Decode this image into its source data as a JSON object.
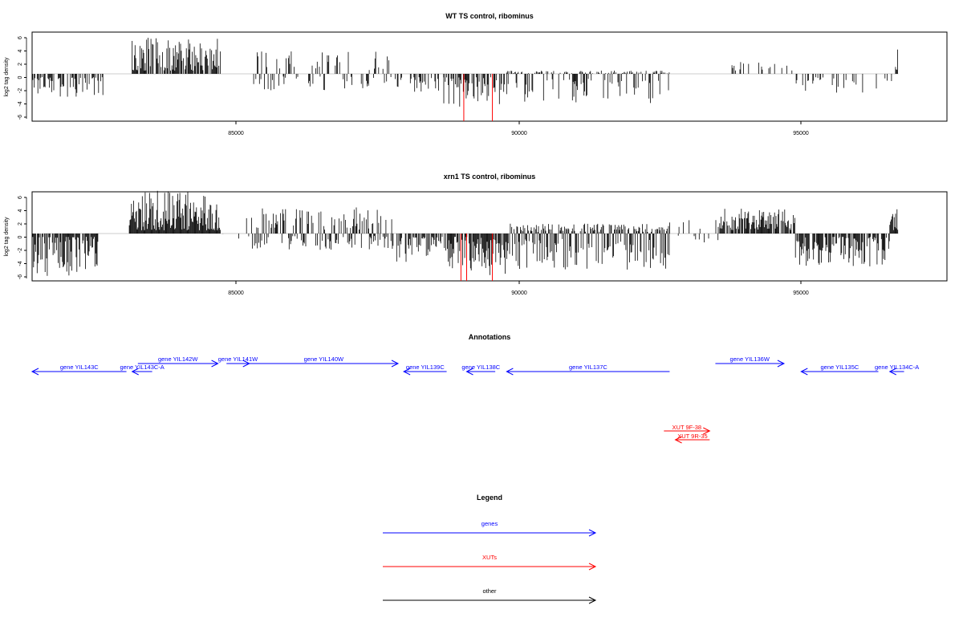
{
  "panels": [
    {
      "title": "WT TS control, ribominus",
      "ylabel": "log2 tag density",
      "yticks": [
        "6",
        "4",
        "2",
        "0",
        "-2",
        "-4",
        "-6"
      ],
      "xticks": [
        "85000",
        "90000",
        "95000"
      ]
    },
    {
      "title": "xrn1 TS control, ribominus",
      "ylabel": "log2 tag density",
      "yticks": [
        "6",
        "4",
        "2",
        "0",
        "-2",
        "-4",
        "-6"
      ],
      "xticks": [
        "85000",
        "90000",
        "95000"
      ]
    }
  ],
  "annotations": {
    "title": "Annotations",
    "genes": [
      {
        "label": "gene YIL143C",
        "start": 81650,
        "end": 83300,
        "strand": "-"
      },
      {
        "label": "gene YIL143C-A",
        "start": 83400,
        "end": 83750,
        "strand": "-"
      },
      {
        "label": "gene YIL142W",
        "start": 83500,
        "end": 84900,
        "strand": "+"
      },
      {
        "label": "gene YIL141W",
        "start": 85050,
        "end": 85450,
        "strand": "+"
      },
      {
        "label": "gene YIL140W",
        "start": 85450,
        "end": 88050,
        "strand": "+"
      },
      {
        "label": "gene YIL139C",
        "start": 88150,
        "end": 88900,
        "strand": "-"
      },
      {
        "label": "gene YIL138C",
        "start": 89250,
        "end": 89750,
        "strand": "-"
      },
      {
        "label": "gene YIL137C",
        "start": 89950,
        "end": 92800,
        "strand": "-"
      },
      {
        "label": "gene YIL136W",
        "start": 93600,
        "end": 94800,
        "strand": "+"
      },
      {
        "label": "gene YIL135C",
        "start": 95100,
        "end": 96450,
        "strand": "-"
      },
      {
        "label": "gene YIL134C-A",
        "start": 96650,
        "end": 96900,
        "strand": "-"
      }
    ],
    "xuts": [
      {
        "label": "XUT 9F-38",
        "start": 92700,
        "end": 93500,
        "strand": "+"
      },
      {
        "label": "XUT 9R-35",
        "start": 92900,
        "end": 93500,
        "strand": "-"
      }
    ]
  },
  "legend": {
    "title": "Legend",
    "items": [
      {
        "label": "genes",
        "color": "#0000ff"
      },
      {
        "label": "XUTs",
        "color": "#ff0000"
      },
      {
        "label": "other",
        "color": "#000000"
      }
    ]
  },
  "colors": {
    "gene": "#0000ff",
    "xut": "#ff0000",
    "signal": "#000000",
    "highlight": "#ff0000"
  },
  "chart_data": [
    {
      "type": "bar",
      "title": "WT TS control, ribominus",
      "ylabel": "log2 tag density",
      "xlabel": "",
      "xlim": [
        81650,
        97650
      ],
      "ylim": [
        -7.5,
        6.8
      ],
      "xticks": [
        85000,
        90000,
        95000
      ],
      "yticks": [
        6,
        4,
        2,
        0,
        -2,
        -4,
        -6
      ],
      "segments": [
        {
          "start": 81650,
          "end": 82900,
          "min": -3.5,
          "max": -0.5,
          "density": 0.5
        },
        {
          "start": 82900,
          "end": 83400,
          "min": 0,
          "max": 0,
          "density": 0.0
        },
        {
          "start": 83400,
          "end": 84950,
          "min": 0.5,
          "max": 5.5,
          "density": 0.8
        },
        {
          "start": 84950,
          "end": 85500,
          "min": 0,
          "max": 0,
          "density": 0.0
        },
        {
          "start": 85500,
          "end": 88000,
          "min": -2.5,
          "max": 3.5,
          "density": 0.35
        },
        {
          "start": 88000,
          "end": 88850,
          "min": -3.0,
          "max": -0.5,
          "density": 0.35
        },
        {
          "start": 88850,
          "end": 89950,
          "min": -5.0,
          "max": -0.5,
          "density": 0.55
        },
        {
          "start": 89950,
          "end": 92800,
          "min": -4.5,
          "max": 0.5,
          "density": 0.6
        },
        {
          "start": 92800,
          "end": 93700,
          "min": 0,
          "max": 0,
          "density": 0.0
        },
        {
          "start": 93700,
          "end": 95000,
          "min": 0.5,
          "max": 2.0,
          "density": 0.15
        },
        {
          "start": 95000,
          "end": 96700,
          "min": -3.0,
          "max": -0.5,
          "density": 0.2
        },
        {
          "start": 96750,
          "end": 96800,
          "min": 0.5,
          "max": 4.0,
          "density": 1.0
        }
      ],
      "highlights": [
        {
          "x": 89200,
          "value": -7.2
        },
        {
          "x": 89700,
          "value": -7.2
        }
      ]
    },
    {
      "type": "bar",
      "title": "xrn1 TS control, ribominus",
      "ylabel": "log2 tag density",
      "xlabel": "",
      "xlim": [
        81650,
        97650
      ],
      "ylim": [
        -7.5,
        6.8
      ],
      "xticks": [
        85000,
        90000,
        95000
      ],
      "yticks": [
        6,
        4,
        2,
        0,
        -2,
        -4,
        -6
      ],
      "segments": [
        {
          "start": 81650,
          "end": 82800,
          "min": -6.5,
          "max": -0.5,
          "density": 0.85
        },
        {
          "start": 82800,
          "end": 83350,
          "min": 0,
          "max": 0,
          "density": 0.0
        },
        {
          "start": 83350,
          "end": 84950,
          "min": 0.5,
          "max": 6.5,
          "density": 1.0
        },
        {
          "start": 84950,
          "end": 85400,
          "min": -1.5,
          "max": 0,
          "density": 0.1
        },
        {
          "start": 85400,
          "end": 87950,
          "min": -2.5,
          "max": 4.0,
          "density": 0.55
        },
        {
          "start": 87950,
          "end": 88900,
          "min": -4.5,
          "max": -0.5,
          "density": 0.6
        },
        {
          "start": 88900,
          "end": 89950,
          "min": -6.5,
          "max": -0.5,
          "density": 0.85
        },
        {
          "start": 89950,
          "end": 92800,
          "min": -5.5,
          "max": 1.5,
          "density": 0.85
        },
        {
          "start": 92800,
          "end": 93650,
          "min": -1.5,
          "max": 2.5,
          "density": 0.2
        },
        {
          "start": 93650,
          "end": 95000,
          "min": 0.5,
          "max": 3.8,
          "density": 0.8
        },
        {
          "start": 95000,
          "end": 96650,
          "min": -5.0,
          "max": -0.5,
          "density": 0.7
        },
        {
          "start": 96650,
          "end": 96800,
          "min": 0.5,
          "max": 5.0,
          "density": 1.0
        }
      ],
      "highlights": [
        {
          "x": 89150,
          "value": -7.2
        },
        {
          "x": 89250,
          "value": -7.2
        },
        {
          "x": 89700,
          "value": -7.2
        }
      ]
    }
  ]
}
